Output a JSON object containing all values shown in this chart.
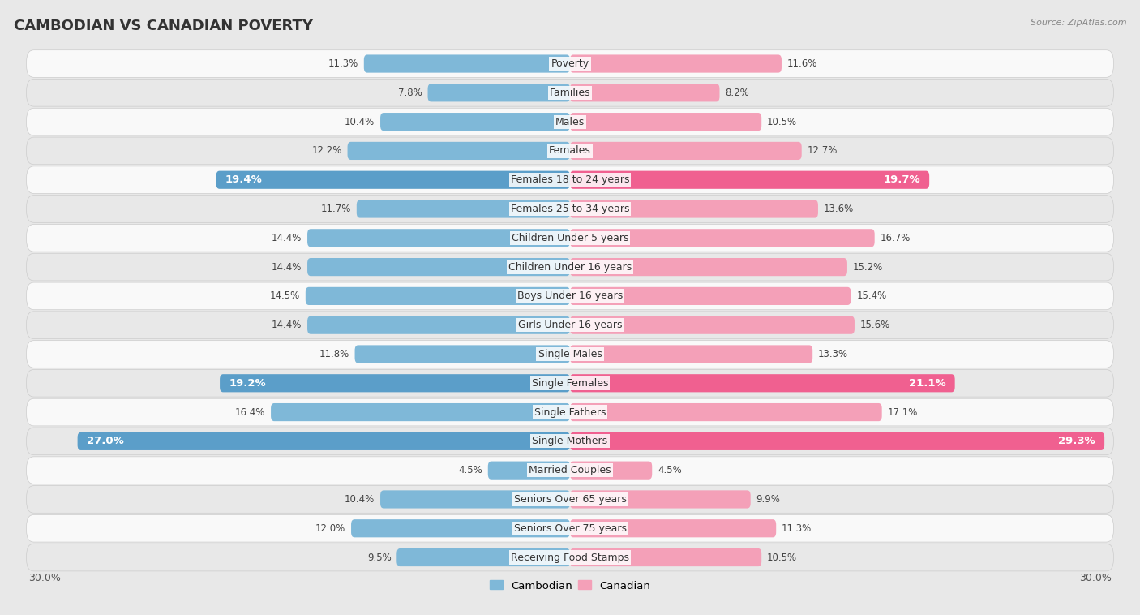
{
  "title": "CAMBODIAN VS CANADIAN POVERTY",
  "source": "Source: ZipAtlas.com",
  "categories": [
    "Poverty",
    "Families",
    "Males",
    "Females",
    "Females 18 to 24 years",
    "Females 25 to 34 years",
    "Children Under 5 years",
    "Children Under 16 years",
    "Boys Under 16 years",
    "Girls Under 16 years",
    "Single Males",
    "Single Females",
    "Single Fathers",
    "Single Mothers",
    "Married Couples",
    "Seniors Over 65 years",
    "Seniors Over 75 years",
    "Receiving Food Stamps"
  ],
  "cambodian": [
    11.3,
    7.8,
    10.4,
    12.2,
    19.4,
    11.7,
    14.4,
    14.4,
    14.5,
    14.4,
    11.8,
    19.2,
    16.4,
    27.0,
    4.5,
    10.4,
    12.0,
    9.5
  ],
  "canadian": [
    11.6,
    8.2,
    10.5,
    12.7,
    19.7,
    13.6,
    16.7,
    15.2,
    15.4,
    15.6,
    13.3,
    21.1,
    17.1,
    29.3,
    4.5,
    9.9,
    11.3,
    10.5
  ],
  "cambodian_color": "#7fb8d8",
  "canadian_color": "#f4a0b8",
  "cambodian_highlight": "#5b9ec9",
  "canadian_highlight": "#f06090",
  "highlight_rows": [
    4,
    11,
    13
  ],
  "background_outer": "#e8e8e8",
  "row_bg_white": "#f9f9f9",
  "row_bg_gray": "#e8e8e8",
  "xlim": 30.0,
  "legend_labels": [
    "Cambodian",
    "Canadian"
  ],
  "title_fontsize": 13,
  "label_fontsize": 9,
  "value_fontsize": 8.5,
  "value_fontsize_highlight": 9.5,
  "bar_height": 0.62
}
